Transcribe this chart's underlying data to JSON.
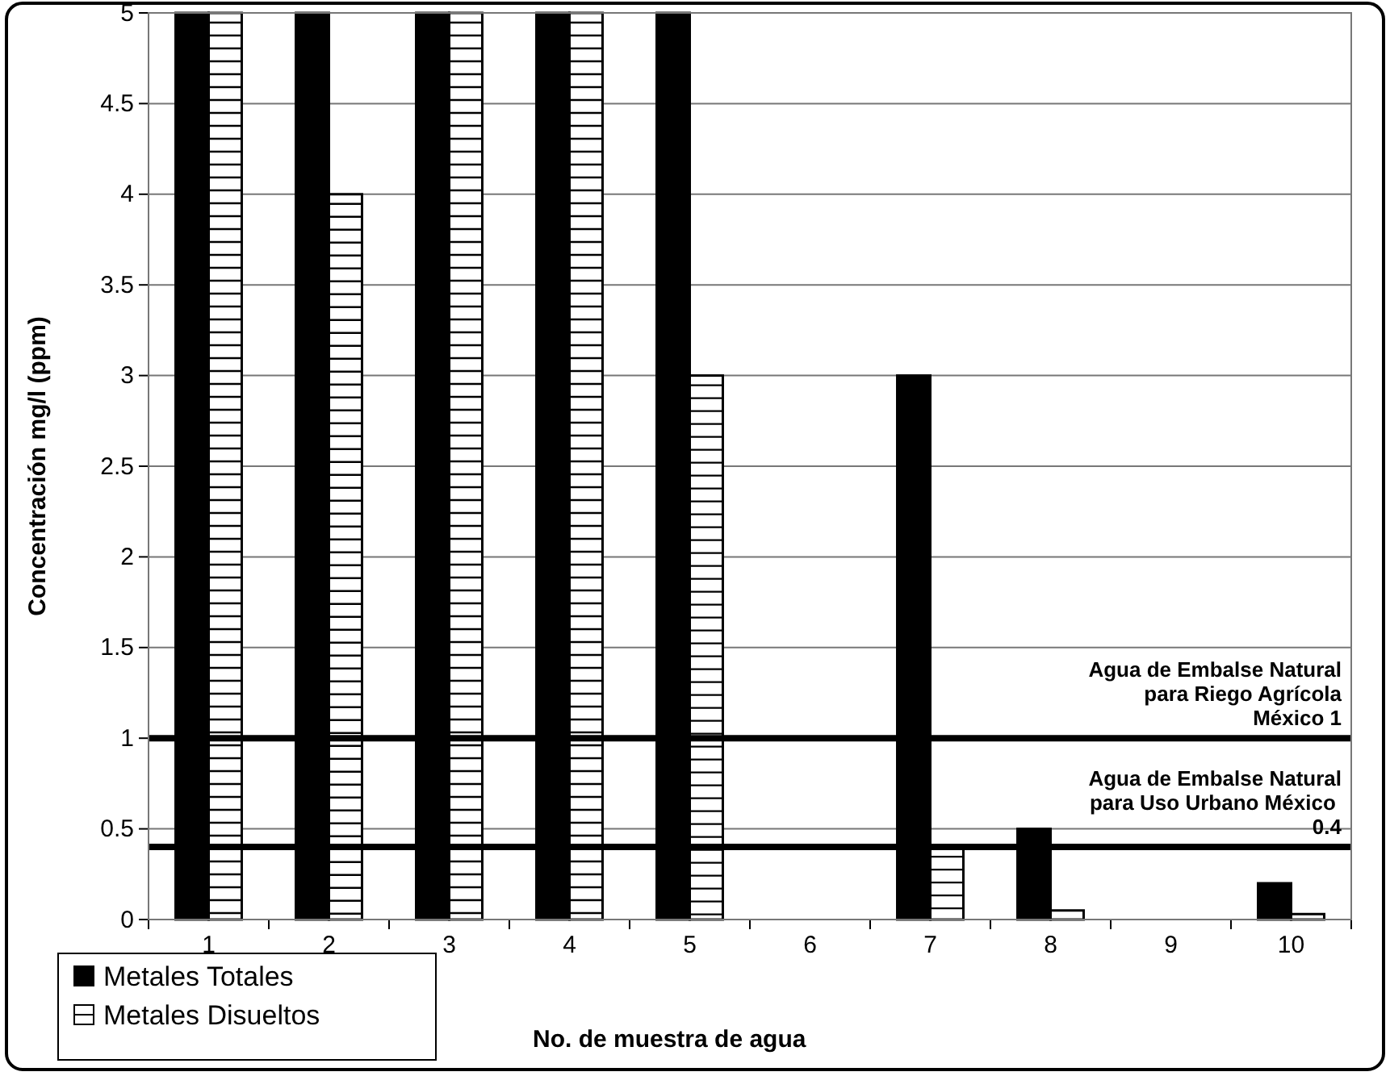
{
  "chart_data": {
    "type": "bar",
    "xlabel": "No. de muestra de agua",
    "ylabel": "Concentración mg/l (ppm)",
    "categories": [
      "1",
      "2",
      "3",
      "4",
      "5",
      "6",
      "7",
      "8",
      "9",
      "10"
    ],
    "series": [
      {
        "name": "Metales Totales",
        "color": "#000000",
        "values": [
          5,
          5,
          5,
          5,
          5,
          0,
          3,
          0.5,
          0,
          0.2
        ]
      },
      {
        "name": "Metales Disueltos",
        "color": "#ffffff",
        "values": [
          5,
          4,
          5,
          5,
          3,
          0,
          0.4,
          0.05,
          0,
          0.03
        ]
      }
    ],
    "ylim": [
      0,
      5
    ],
    "yticks": [
      0,
      0.5,
      1,
      1.5,
      2,
      2.5,
      3,
      3.5,
      4,
      4.5,
      5
    ],
    "grid": "y",
    "legend": "bottom left",
    "ref_lines": [
      {
        "axis": "y",
        "value": 1,
        "label": "Agua de Embalse Natural para Riego Agrícola México 1",
        "color": "#000000"
      },
      {
        "axis": "y",
        "value": 0.4,
        "label": "Agua de Embalse Natural para Uso Urbano México  0.4",
        "color": "#000000"
      }
    ]
  }
}
